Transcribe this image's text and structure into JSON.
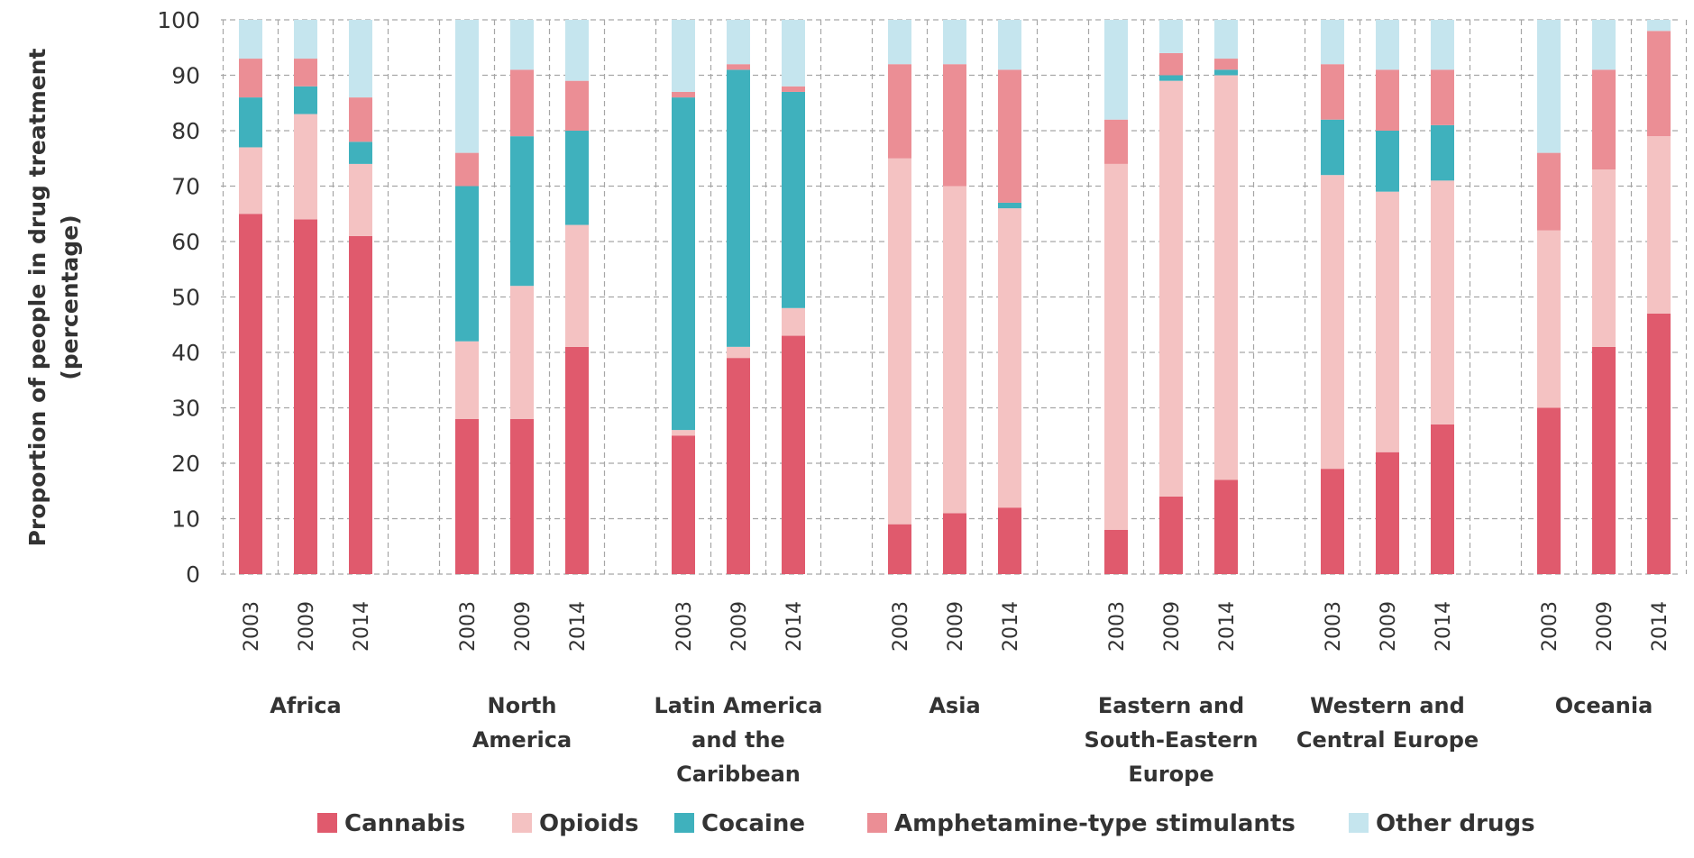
{
  "chart_data": {
    "type": "bar",
    "stacked": true,
    "ylabel_lines": [
      "Proportion of people in drug treatment",
      "(percentage)"
    ],
    "ylim": [
      0,
      100
    ],
    "yticks": [
      0,
      10,
      20,
      30,
      40,
      50,
      60,
      70,
      80,
      90,
      100
    ],
    "grid": true,
    "legend_position": "bottom",
    "groups": [
      {
        "label_lines": [
          "Africa"
        ],
        "years": [
          "2003",
          "2009",
          "2014"
        ]
      },
      {
        "label_lines": [
          "North",
          "America"
        ],
        "years": [
          "2003",
          "2009",
          "2014"
        ]
      },
      {
        "label_lines": [
          "Latin America",
          "and the",
          "Caribbean"
        ],
        "years": [
          "2003",
          "2009",
          "2014"
        ]
      },
      {
        "label_lines": [
          "Asia"
        ],
        "years": [
          "2003",
          "2009",
          "2014"
        ]
      },
      {
        "label_lines": [
          "Eastern and",
          "South-Eastern",
          "Europe"
        ],
        "years": [
          "2003",
          "2009",
          "2014"
        ]
      },
      {
        "label_lines": [
          "Western and",
          "Central Europe"
        ],
        "years": [
          "2003",
          "2009",
          "2014"
        ]
      },
      {
        "label_lines": [
          "Oceania"
        ],
        "years": [
          "2003",
          "2009",
          "2014"
        ]
      }
    ],
    "series": [
      {
        "name": "Cannabis",
        "color": "#e05a6d",
        "values": [
          65,
          64,
          61,
          28,
          28,
          41,
          25,
          39,
          43,
          9,
          11,
          12,
          8,
          14,
          17,
          19,
          22,
          27,
          30,
          41,
          47
        ]
      },
      {
        "name": "Opioids",
        "color": "#f4c2c2",
        "values": [
          12,
          19,
          13,
          14,
          24,
          22,
          1,
          2,
          5,
          66,
          59,
          54,
          66,
          75,
          73,
          53,
          47,
          44,
          32,
          32,
          32
        ]
      },
      {
        "name": "Cocaine",
        "color": "#3fb1bd",
        "values": [
          9,
          5,
          4,
          28,
          27,
          17,
          60,
          50,
          39,
          0,
          0,
          1,
          0,
          1,
          1,
          10,
          11,
          10,
          0,
          0,
          0
        ]
      },
      {
        "name": "Amphetamine-type stimulants",
        "color": "#eb8e95",
        "values": [
          7,
          5,
          8,
          6,
          12,
          9,
          1,
          1,
          1,
          17,
          22,
          24,
          8,
          4,
          2,
          10,
          11,
          10,
          14,
          18,
          19
        ]
      },
      {
        "name": "Other drugs",
        "color": "#c5e5ee",
        "values": [
          7,
          7,
          14,
          24,
          9,
          11,
          13,
          8,
          12,
          8,
          8,
          9,
          18,
          6,
          7,
          8,
          9,
          9,
          24,
          9,
          2
        ]
      }
    ]
  }
}
